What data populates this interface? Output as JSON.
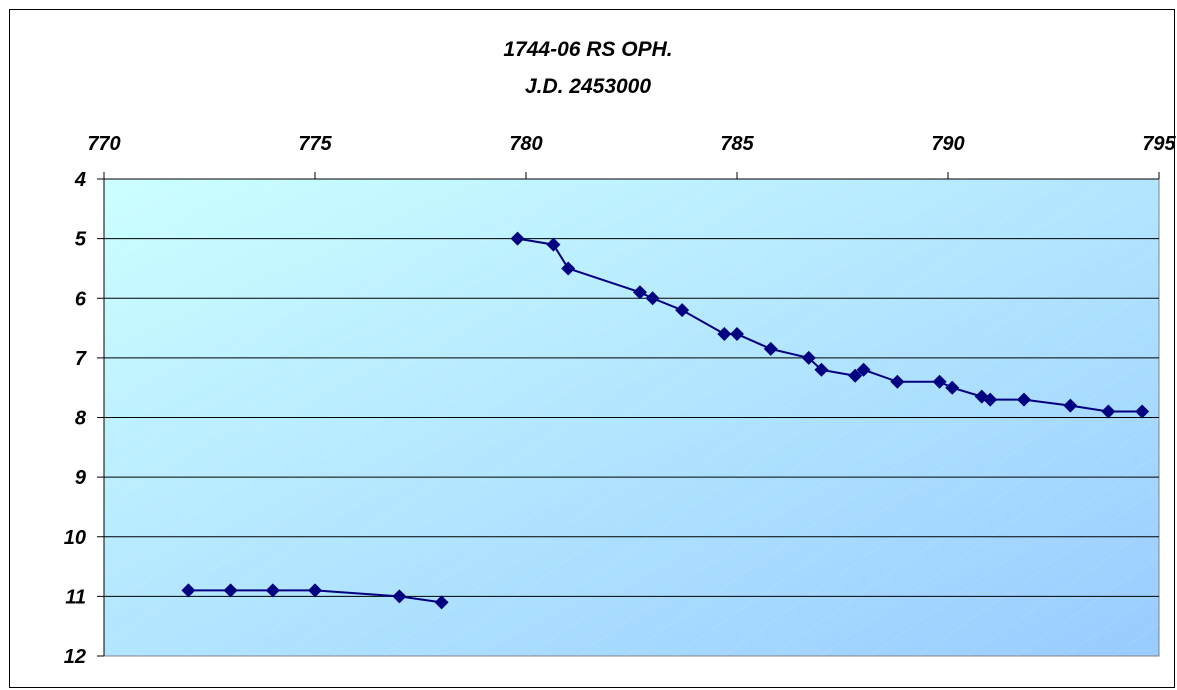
{
  "chart_data": {
    "type": "line",
    "title": "1744-06  RS OPH.",
    "subtitle": "J.D. 2453000",
    "xlabel": "",
    "ylabel": "",
    "x_axis_position": "top",
    "xlim": [
      770,
      795
    ],
    "x_ticks": [
      770,
      775,
      780,
      785,
      790,
      795
    ],
    "ylim": [
      4,
      12
    ],
    "y_inverted": true,
    "y_ticks": [
      4,
      5,
      6,
      7,
      8,
      9,
      10,
      11,
      12
    ],
    "grid": "horizontal",
    "legend": "none",
    "colors": {
      "series": "#000080",
      "plot_bg_light": "#ccffff",
      "plot_bg_dark": "#99ccff",
      "gridline": "#000000"
    },
    "series": [
      {
        "points": [
          [
            772.0,
            10.9
          ],
          [
            773.0,
            10.9
          ],
          [
            774.0,
            10.9
          ],
          [
            775.0,
            10.9
          ],
          [
            777.0,
            11.0
          ],
          [
            778.0,
            11.1
          ]
        ]
      },
      {
        "points": [
          [
            779.8,
            5.0
          ],
          [
            780.65,
            5.1
          ],
          [
            781.0,
            5.5
          ],
          [
            782.7,
            5.9
          ],
          [
            783.0,
            6.0
          ],
          [
            783.7,
            6.2
          ],
          [
            784.7,
            6.6
          ],
          [
            785.0,
            6.6
          ],
          [
            785.8,
            6.85
          ],
          [
            786.7,
            7.0
          ],
          [
            787.0,
            7.2
          ],
          [
            787.8,
            7.3
          ],
          [
            788.0,
            7.2
          ],
          [
            788.8,
            7.4
          ],
          [
            789.8,
            7.4
          ],
          [
            790.1,
            7.5
          ],
          [
            790.8,
            7.65
          ],
          [
            791.0,
            7.7
          ],
          [
            791.8,
            7.7
          ],
          [
            792.9,
            7.8
          ],
          [
            793.8,
            7.9
          ],
          [
            794.6,
            7.9
          ]
        ]
      }
    ]
  }
}
